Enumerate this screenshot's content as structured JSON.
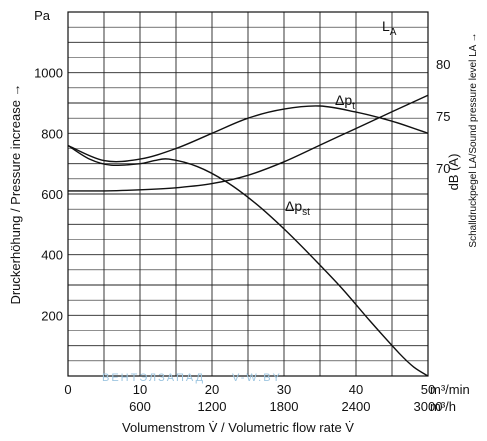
{
  "chart_data": {
    "type": "line",
    "x_unit_top": "m³/min",
    "x_unit_bottom": "m³/h",
    "y_unit_left": "Pa",
    "y_unit_right": "dB (A)",
    "xlabel": "Volumenstrom V̇ / Volumetric flow rate V̇",
    "ylabel_left": "Druckerhöhung / Pressure increase →",
    "ylabel_right": "Schalldruckpegel LA/Sound pressure level LA →",
    "xlim": [
      0,
      50
    ],
    "ylim_left": [
      0,
      1200
    ],
    "ylim_right": [
      50,
      85
    ],
    "x_ticks_top": [
      "0",
      "10",
      "20",
      "30",
      "40",
      "50"
    ],
    "x_ticks_bottom": [
      "600",
      "1200",
      "1800",
      "2400",
      "3000"
    ],
    "y_ticks_left": [
      "200",
      "400",
      "600",
      "800",
      "1000"
    ],
    "y_ticks_right": [
      "70",
      "75",
      "80"
    ],
    "grid": true,
    "series": [
      {
        "name": "LA",
        "axis": "right",
        "x": [
          0,
          5,
          10,
          15,
          20,
          25,
          30,
          35,
          40,
          45,
          50
        ],
        "y": [
          67.8,
          67.8,
          67.9,
          68.1,
          68.5,
          69.3,
          70.6,
          72.2,
          73.8,
          75.4,
          77.0
        ]
      },
      {
        "name": "Δpt",
        "axis": "left",
        "x": [
          0,
          5,
          10,
          15,
          20,
          25,
          30,
          35,
          40,
          45,
          50
        ],
        "y": [
          760,
          710,
          715,
          750,
          800,
          850,
          880,
          890,
          870,
          840,
          800
        ]
      },
      {
        "name": "Δpst",
        "axis": "left",
        "x": [
          0,
          3,
          6,
          10,
          12,
          14,
          18,
          22,
          26,
          30,
          34,
          38,
          42,
          46,
          48,
          50
        ],
        "y": [
          760,
          715,
          695,
          700,
          710,
          715,
          690,
          640,
          570,
          485,
          390,
          290,
          180,
          75,
          30,
          0
        ]
      }
    ]
  },
  "watermark": "ВЕНТЭЛЗАПАД",
  "watermark_site": "V-W.BY"
}
